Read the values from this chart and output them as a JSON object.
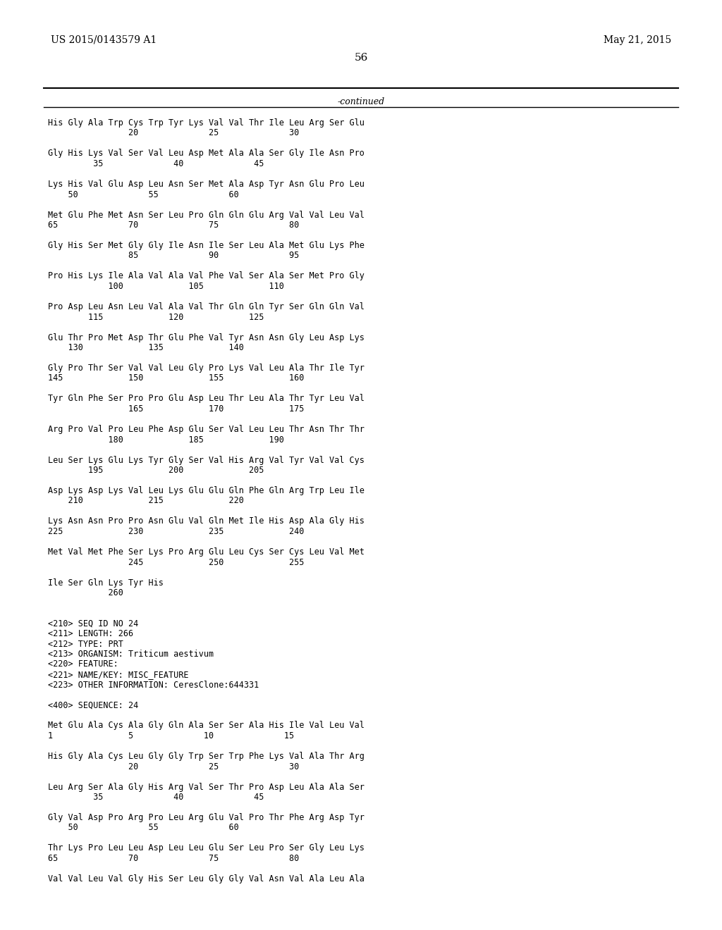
{
  "patent_number": "US 2015/0143579 A1",
  "date": "May 21, 2015",
  "page_number": "56",
  "continued_label": "-continued",
  "background_color": "#ffffff",
  "text_color": "#000000",
  "font_size": 8.5,
  "header_font_size": 10,
  "mono_font_size": 8.0,
  "lines": [
    "His Gly Ala Trp Cys Trp Tyr Lys Val Val Thr Ile Leu Arg Ser Glu",
    "                20              25              30",
    "",
    "Gly His Lys Val Ser Val Leu Asp Met Ala Ala Ser Gly Ile Asn Pro",
    "         35              40              45",
    "",
    "Lys His Val Glu Asp Leu Asn Ser Met Ala Asp Tyr Asn Glu Pro Leu",
    "    50              55              60",
    "",
    "Met Glu Phe Met Asn Ser Leu Pro Gln Gln Glu Arg Val Val Leu Val",
    "65              70              75              80",
    "",
    "Gly His Ser Met Gly Gly Ile Asn Ile Ser Leu Ala Met Glu Lys Phe",
    "                85              90              95",
    "",
    "Pro His Lys Ile Ala Val Ala Val Phe Val Ser Ala Ser Met Pro Gly",
    "            100             105             110",
    "",
    "Pro Asp Leu Asn Leu Val Ala Val Thr Gln Gln Tyr Ser Gln Gln Val",
    "        115             120             125",
    "",
    "Glu Thr Pro Met Asp Thr Glu Phe Val Tyr Asn Asn Gly Leu Asp Lys",
    "    130             135             140",
    "",
    "Gly Pro Thr Ser Val Val Leu Gly Pro Lys Val Leu Ala Thr Ile Tyr",
    "145             150             155             160",
    "",
    "Tyr Gln Phe Ser Pro Pro Glu Asp Leu Thr Leu Ala Thr Tyr Leu Val",
    "                165             170             175",
    "",
    "Arg Pro Val Pro Leu Phe Asp Glu Ser Val Leu Leu Thr Asn Thr Thr",
    "            180             185             190",
    "",
    "Leu Ser Lys Glu Lys Tyr Gly Ser Val His Arg Val Tyr Val Val Cys",
    "        195             200             205",
    "",
    "Asp Lys Asp Lys Val Leu Lys Glu Glu Gln Phe Gln Arg Trp Leu Ile",
    "    210             215             220",
    "",
    "Lys Asn Asn Pro Pro Asn Glu Val Gln Met Ile His Asp Ala Gly His",
    "225             230             235             240",
    "",
    "Met Val Met Phe Ser Lys Pro Arg Glu Leu Cys Ser Cys Leu Val Met",
    "                245             250             255",
    "",
    "Ile Ser Gln Lys Tyr His",
    "            260",
    "",
    "",
    "<210> SEQ ID NO 24",
    "<211> LENGTH: 266",
    "<212> TYPE: PRT",
    "<213> ORGANISM: Triticum aestivum",
    "<220> FEATURE:",
    "<221> NAME/KEY: MISC_FEATURE",
    "<223> OTHER INFORMATION: CeresClone:644331",
    "",
    "<400> SEQUENCE: 24",
    "",
    "Met Glu Ala Cys Ala Gly Gln Ala Ser Ser Ala His Ile Val Leu Val",
    "1               5              10              15",
    "",
    "His Gly Ala Cys Leu Gly Gly Trp Ser Trp Phe Lys Val Ala Thr Arg",
    "                20              25              30",
    "",
    "Leu Arg Ser Ala Gly His Arg Val Ser Thr Pro Asp Leu Ala Ala Ser",
    "         35              40              45",
    "",
    "Gly Val Asp Pro Arg Pro Leu Arg Glu Val Pro Thr Phe Arg Asp Tyr",
    "    50              55              60",
    "",
    "Thr Lys Pro Leu Leu Asp Leu Leu Glu Ser Leu Pro Ser Gly Leu Lys",
    "65              70              75              80",
    "",
    "Val Val Leu Val Gly His Ser Leu Gly Gly Val Asn Val Ala Leu Ala"
  ]
}
